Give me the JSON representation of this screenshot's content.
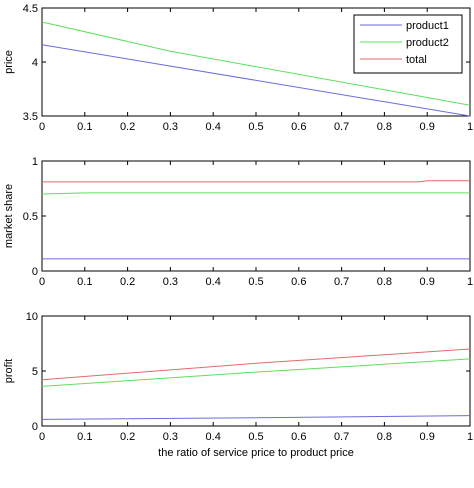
{
  "chart_data": [
    {
      "type": "line",
      "id": "price",
      "ylabel": "price",
      "xlabel": "",
      "xlim": [
        0,
        1
      ],
      "ylim": [
        3.5,
        4.5
      ],
      "xticks": [
        "0",
        "0.1",
        "0.2",
        "0.3",
        "0.4",
        "0.5",
        "0.6",
        "0.7",
        "0.8",
        "0.9",
        "1"
      ],
      "yticks": [
        "3.5",
        "4",
        "4.5"
      ],
      "grid": false,
      "legend": "top-right",
      "series": [
        {
          "name": "product1",
          "color": "#6b6bdb",
          "x": [
            0,
            1
          ],
          "y": [
            4.16,
            3.5
          ]
        },
        {
          "name": "product2",
          "color": "#5ce05c",
          "x": [
            0,
            0.3,
            1
          ],
          "y": [
            4.37,
            4.1,
            3.6
          ]
        },
        {
          "name": "total",
          "color": "#e06b6b",
          "x": [],
          "y": []
        }
      ]
    },
    {
      "type": "line",
      "id": "market-share",
      "ylabel": "market share",
      "xlabel": "",
      "xlim": [
        0,
        1
      ],
      "ylim": [
        0,
        1
      ],
      "xticks": [
        "0",
        "0.1",
        "0.2",
        "0.3",
        "0.4",
        "0.5",
        "0.6",
        "0.7",
        "0.8",
        "0.9",
        "1"
      ],
      "yticks": [
        "0",
        "0.5",
        "1"
      ],
      "grid": false,
      "series": [
        {
          "name": "product1",
          "color": "#6b6bdb",
          "x": [
            0,
            1
          ],
          "y": [
            0.11,
            0.11
          ]
        },
        {
          "name": "product2",
          "color": "#5ce05c",
          "x": [
            0,
            0.1,
            1
          ],
          "y": [
            0.7,
            0.71,
            0.71
          ]
        },
        {
          "name": "total",
          "color": "#e06b6b",
          "x": [
            0,
            0.88,
            0.9,
            1
          ],
          "y": [
            0.81,
            0.81,
            0.82,
            0.82
          ]
        }
      ]
    },
    {
      "type": "line",
      "id": "profit",
      "ylabel": "profit",
      "xlabel": "the ratio of service price to product price",
      "xlim": [
        0,
        1
      ],
      "ylim": [
        0,
        10
      ],
      "xticks": [
        "0",
        "0.1",
        "0.2",
        "0.3",
        "0.4",
        "0.5",
        "0.6",
        "0.7",
        "0.8",
        "0.9",
        "1"
      ],
      "yticks": [
        "0",
        "5",
        "10"
      ],
      "grid": false,
      "series": [
        {
          "name": "product1",
          "color": "#6b6bdb",
          "x": [
            0,
            0.5,
            1
          ],
          "y": [
            0.6,
            0.75,
            0.95
          ]
        },
        {
          "name": "product2",
          "color": "#5ce05c",
          "x": [
            0,
            0.5,
            1
          ],
          "y": [
            3.6,
            4.9,
            6.1
          ]
        },
        {
          "name": "total",
          "color": "#e06b6b",
          "x": [
            0,
            0.5,
            1
          ],
          "y": [
            4.2,
            5.7,
            7.0
          ]
        }
      ]
    }
  ]
}
